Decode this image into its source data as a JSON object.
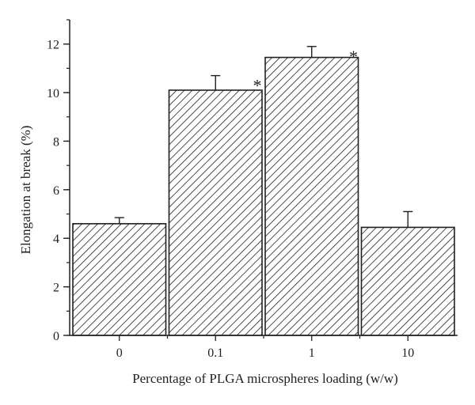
{
  "chart_data": {
    "type": "bar",
    "xlabel": "Percentage of PLGA microspheres loading (w/w)",
    "ylabel": "Elongation at break (%)",
    "categories": [
      "0",
      "0.1",
      "1",
      "10"
    ],
    "values": [
      4.6,
      10.1,
      11.45,
      4.45
    ],
    "error": [
      0.25,
      0.6,
      0.45,
      0.65
    ],
    "annotations": [
      "",
      "*",
      "*",
      ""
    ],
    "ylim": [
      0,
      13
    ],
    "yticks": [
      0,
      2,
      4,
      6,
      8,
      10,
      12
    ],
    "yticklabels": [
      "0",
      "2",
      "4",
      "6",
      "8",
      "10",
      "12"
    ],
    "y_minor_step": 1,
    "bar_fill": "diagonal-hatch",
    "bar_color": "#ffffff",
    "line_color": "#231f20",
    "grid": false,
    "legend": "none"
  }
}
